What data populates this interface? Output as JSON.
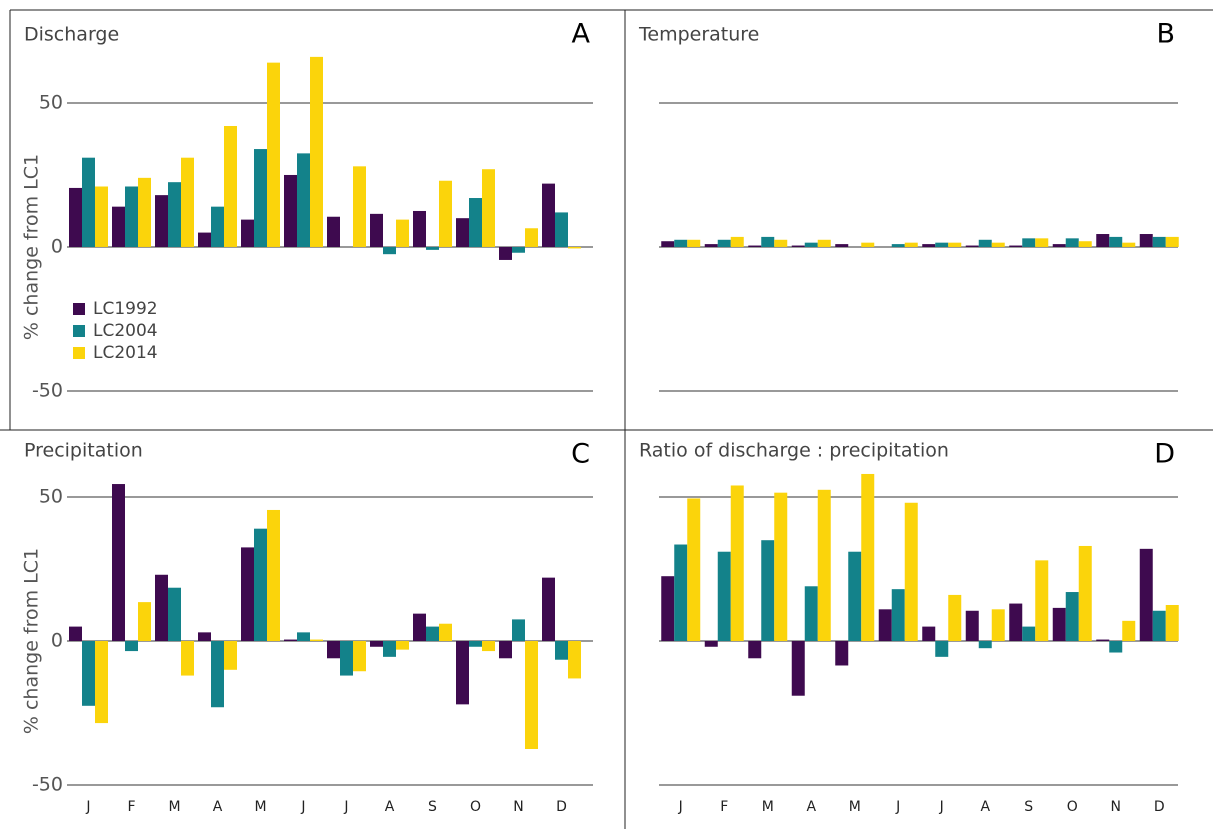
{
  "chart_data": [
    {
      "type": "bar",
      "title": "Discharge",
      "panel_label": "A",
      "ylabel": "% change from LC1",
      "ylim": [
        -60,
        67
      ],
      "yticks": [
        -50,
        0,
        50
      ],
      "grid": true,
      "ytick_labels": true,
      "legend": "upper left",
      "series": [
        {
          "name": "LC1992",
          "color": "#3e0a4f",
          "values": [
            20.5,
            14,
            18,
            5,
            9.5,
            25,
            10.5,
            11.5,
            12.5,
            10,
            -4.5,
            22
          ]
        },
        {
          "name": "LC2004",
          "color": "#13828a",
          "values": [
            31,
            21,
            22.5,
            14,
            34,
            32.5,
            0,
            -2.5,
            -1,
            17,
            -2,
            12
          ]
        },
        {
          "name": "LC2014",
          "color": "#fbd40b",
          "values": [
            21,
            24,
            31,
            42,
            64,
            66,
            28,
            9.5,
            23,
            27,
            6.5,
            -0.5
          ]
        }
      ]
    },
    {
      "type": "bar",
      "title": "Temperature",
      "panel_label": "B",
      "ylim": [
        -60,
        67
      ],
      "yticks": [
        -50,
        0,
        50
      ],
      "grid": true,
      "ytick_labels": false,
      "series": [
        {
          "name": "LC1992",
          "color": "#3e0a4f",
          "values": [
            2,
            1,
            0.5,
            0.5,
            1,
            0,
            1,
            0.5,
            0.5,
            1,
            4.5,
            4.5
          ]
        },
        {
          "name": "LC2004",
          "color": "#13828a",
          "values": [
            2.5,
            2.5,
            3.5,
            1.5,
            0,
            1,
            1.5,
            2.5,
            3,
            3,
            3.5,
            3.5
          ]
        },
        {
          "name": "LC2014",
          "color": "#fbd40b",
          "values": [
            2.5,
            3.5,
            2.5,
            2.5,
            1.5,
            1.5,
            1.5,
            1.5,
            3,
            2,
            1.5,
            3.5
          ]
        }
      ]
    },
    {
      "type": "bar",
      "title": "Precipitation",
      "panel_label": "C",
      "ylabel": "% change from LC1",
      "categories": [
        "J",
        "F",
        "M",
        "A",
        "M",
        "J",
        "J",
        "A",
        "S",
        "O",
        "N",
        "D"
      ],
      "ylim": [
        -55,
        60
      ],
      "yticks": [
        -50,
        0,
        50
      ],
      "grid": true,
      "ytick_labels": true,
      "series": [
        {
          "name": "LC1992",
          "color": "#3e0a4f",
          "values": [
            5,
            54.5,
            23,
            3,
            32.5,
            0.5,
            -6,
            -2,
            9.5,
            -22,
            -6,
            22
          ]
        },
        {
          "name": "LC2004",
          "color": "#13828a",
          "values": [
            -22.5,
            -3.5,
            18.5,
            -23,
            39,
            3,
            -12,
            -5.5,
            5,
            -2,
            7.5,
            -6.5
          ]
        },
        {
          "name": "LC2014",
          "color": "#fbd40b",
          "values": [
            -28.5,
            13.5,
            -12,
            -10,
            45.5,
            0.5,
            -10.5,
            -3,
            6,
            -3.5,
            -37.5,
            -13
          ]
        }
      ]
    },
    {
      "type": "bar",
      "title": "Ratio of discharge : precipitation",
      "panel_label": "D",
      "categories": [
        "J",
        "F",
        "M",
        "A",
        "M",
        "J",
        "J",
        "A",
        "S",
        "O",
        "N",
        "D"
      ],
      "ylim": [
        -55,
        60
      ],
      "yticks": [
        -50,
        0,
        50
      ],
      "grid": true,
      "ytick_labels": false,
      "series": [
        {
          "name": "LC1992",
          "color": "#3e0a4f",
          "values": [
            22.5,
            -2,
            -6,
            -19,
            -8.5,
            11,
            5,
            10.5,
            13,
            11.5,
            0.5,
            32
          ]
        },
        {
          "name": "LC2004",
          "color": "#13828a",
          "values": [
            33.5,
            31,
            35,
            19,
            31,
            18,
            -5.5,
            -2.5,
            5,
            17,
            -4,
            10.5
          ]
        },
        {
          "name": "LC2014",
          "color": "#fbd40b",
          "values": [
            49.5,
            54,
            51.5,
            52.5,
            58,
            48,
            16,
            11,
            28,
            33,
            7,
            12.5
          ]
        }
      ]
    }
  ]
}
